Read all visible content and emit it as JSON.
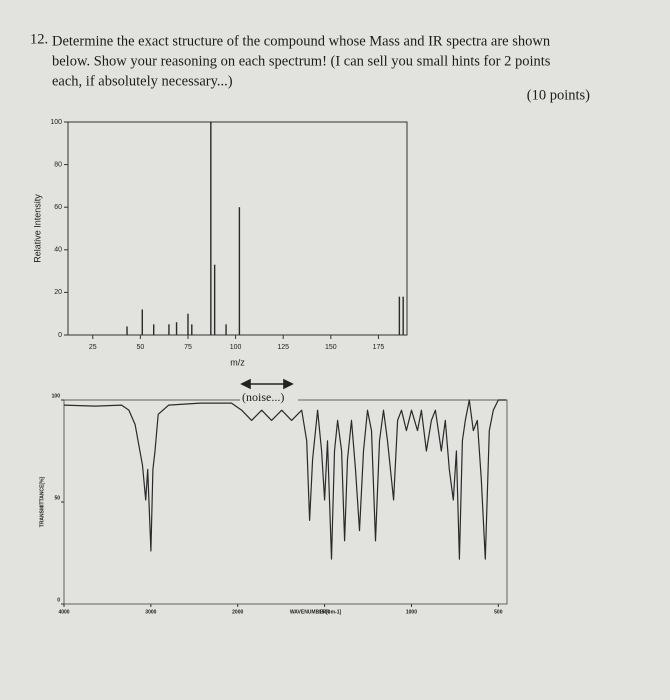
{
  "question": {
    "number": "12.",
    "lines": [
      "Determine the exact structure of the compound whose Mass and IR spectra are shown",
      "below. Show your reasoning on each spectrum! (I can sell you small hints for 2 points",
      "each, if absolutely necessary...)"
    ],
    "points": "(10 points)"
  },
  "chart_data": [
    {
      "type": "bar",
      "xlabel": "m/z",
      "ylabel": "Relative Intensity",
      "color": "#2a2a2a",
      "x": [
        43,
        51,
        57,
        65,
        69,
        75,
        77,
        87,
        89,
        95,
        102,
        186,
        188
      ],
      "values": [
        4,
        12,
        5,
        5,
        6,
        10,
        5,
        100,
        33,
        5,
        60,
        18,
        18
      ],
      "xlim": [
        12,
        190
      ],
      "xticks": [
        25,
        50,
        75,
        100,
        125,
        150,
        175
      ],
      "ylim": [
        0,
        100
      ],
      "yticks": [
        0,
        20,
        40,
        60,
        80,
        100
      ]
    },
    {
      "type": "line",
      "xlabel": "WAVENUMBER[cm-1]",
      "ylabel": "TRANSMITTANCE[%]",
      "color": "#2a2a2a",
      "annotation": "(noise...)",
      "x": [
        4000,
        3638,
        3337,
        3253,
        3181,
        3096,
        3060,
        3036,
        3000,
        2976,
        2952,
        2915,
        2795,
        2434,
        2072,
        1977,
        1920,
        1862,
        1805,
        1747,
        1690,
        1632,
        1603,
        1586,
        1569,
        1540,
        1517,
        1500,
        1483,
        1460,
        1443,
        1425,
        1402,
        1385,
        1368,
        1345,
        1322,
        1299,
        1276,
        1253,
        1230,
        1207,
        1184,
        1161,
        1138,
        1103,
        1080,
        1057,
        1029,
        1000,
        965,
        943,
        914,
        885,
        862,
        828,
        805,
        782,
        759,
        741,
        724,
        707,
        690,
        667,
        644,
        621,
        598,
        575,
        552,
        529,
        500,
        454
      ],
      "values": [
        97.5,
        97,
        97.5,
        95,
        88,
        68,
        51,
        66,
        26,
        66,
        75,
        93,
        97.5,
        98.5,
        98.5,
        95,
        90,
        95,
        90,
        95,
        90,
        95,
        80,
        41,
        71,
        95,
        75,
        51,
        80,
        22,
        75,
        90,
        75,
        31,
        71,
        90,
        66,
        36,
        75,
        95,
        85,
        31,
        80,
        95,
        80,
        51,
        90,
        95,
        85,
        95,
        85,
        95,
        75,
        90,
        95,
        75,
        90,
        66,
        51,
        75,
        22,
        80,
        90,
        100,
        85,
        90,
        61,
        22,
        85,
        95,
        100,
        100
      ],
      "xlim": [
        4000,
        450
      ],
      "xticks": [
        4000,
        3000,
        2000,
        1500,
        1000,
        500
      ],
      "ylim": [
        0,
        100
      ],
      "yticks": [
        0,
        50,
        100
      ]
    }
  ]
}
